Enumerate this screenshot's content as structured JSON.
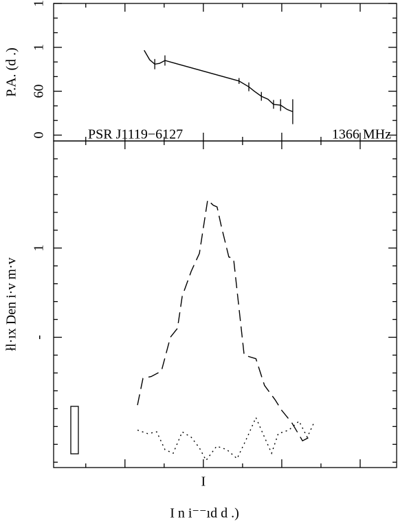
{
  "chart_data": [
    {
      "type": "line",
      "y_label": "P.A. (d   .)",
      "annotations": [
        "PSR J1119−6127",
        "1366 MHz"
      ],
      "xlim": [
        -38.2,
        49.3
      ],
      "xticks": [
        {
          "value": -20,
          "label": null
        },
        {
          "value": 0,
          "label": null
        },
        {
          "value": 20,
          "label": null
        },
        {
          "value": 40,
          "label": null
        }
      ],
      "xminorticks": [
        -30,
        -10,
        10,
        30
      ],
      "ylim": [
        -8,
        180
      ],
      "yticks": [
        0,
        60,
        {
          "value": 120,
          "label": "1"
        },
        {
          "value": 180,
          "label": "1"
        }
      ],
      "yminorticks": [
        20,
        40,
        80,
        100,
        140,
        160
      ],
      "series": [
        {
          "color": "#000000",
          "style": "solid",
          "x": [
            -15.1,
            -13.7,
            -12.4,
            -11.2,
            -9.8,
            9.1,
            11.6,
            13.0,
            14.8,
            16.5,
            17.9,
            19.7,
            21.4,
            22.8
          ],
          "values": [
            116,
            103,
            97,
            98,
            102,
            74,
            66,
            60,
            53,
            49,
            42,
            41,
            35,
            32
          ],
          "errors": [
            null,
            null,
            7,
            null,
            7,
            4,
            6,
            null,
            6,
            null,
            6,
            8,
            null,
            17
          ]
        }
      ]
    },
    {
      "type": "line",
      "y_label": "łl·ıx Den i·v m·v",
      "x_label": "I n i⁻⁻ıd   d  .)",
      "xlim": [
        -38.2,
        49.3
      ],
      "xticks": [
        {
          "value": -20,
          "label": null
        },
        {
          "value": 0,
          "label": "I"
        },
        {
          "value": 20,
          "label": null
        },
        {
          "value": 40,
          "label": null
        }
      ],
      "xminorticks": [
        -30,
        -10,
        10,
        30
      ],
      "ylim": [
        -0.23,
        1.6
      ],
      "yticks": [
        {
          "value": 0.5,
          "label": "-"
        },
        {
          "value": 1,
          "label": "1"
        }
      ],
      "yminorticks": [
        -0.2,
        -0.1,
        0,
        0.1,
        0.2,
        0.3,
        0.4,
        0.6,
        0.7,
        0.8,
        0.9,
        1.1,
        1.2,
        1.3,
        1.4,
        1.5
      ],
      "series": [
        {
          "color": "#000000",
          "style": "dashed",
          "x": [
            -16.8,
            -15.4,
            -13.3,
            -10.7,
            -8.4,
            -6.6,
            -5.4,
            -3.1,
            -1.0,
            1.1,
            2.5,
            3.5,
            4.6,
            6.5,
            7.7,
            10.4,
            13.4,
            15.6,
            18.3,
            20.0,
            22.6,
            25.3,
            27.9
          ],
          "values": [
            0.12,
            0.27,
            0.28,
            0.31,
            0.5,
            0.55,
            0.73,
            0.87,
            0.97,
            1.27,
            1.24,
            1.23,
            1.12,
            0.95,
            0.94,
            0.4,
            0.38,
            0.23,
            0.15,
            0.09,
            0.02,
            -0.08,
            -0.05
          ]
        },
        {
          "color": "#000000",
          "style": "dotted",
          "x": [
            -16.8,
            -14.2,
            -11.9,
            -9.8,
            -7.7,
            -5.4,
            -3.1,
            -1.0,
            0.7,
            3.4,
            6.0,
            8.6,
            11.2,
            13.4,
            15.6,
            17.4,
            19.1,
            21.8,
            24.4,
            26.5,
            28.4
          ],
          "values": [
            -0.02,
            -0.04,
            -0.03,
            -0.13,
            -0.15,
            -0.03,
            -0.06,
            -0.12,
            -0.19,
            -0.11,
            -0.13,
            -0.18,
            -0.06,
            0.05,
            -0.06,
            -0.15,
            -0.04,
            -0.02,
            0.03,
            -0.06,
            0.03
          ]
        }
      ]
    }
  ]
}
